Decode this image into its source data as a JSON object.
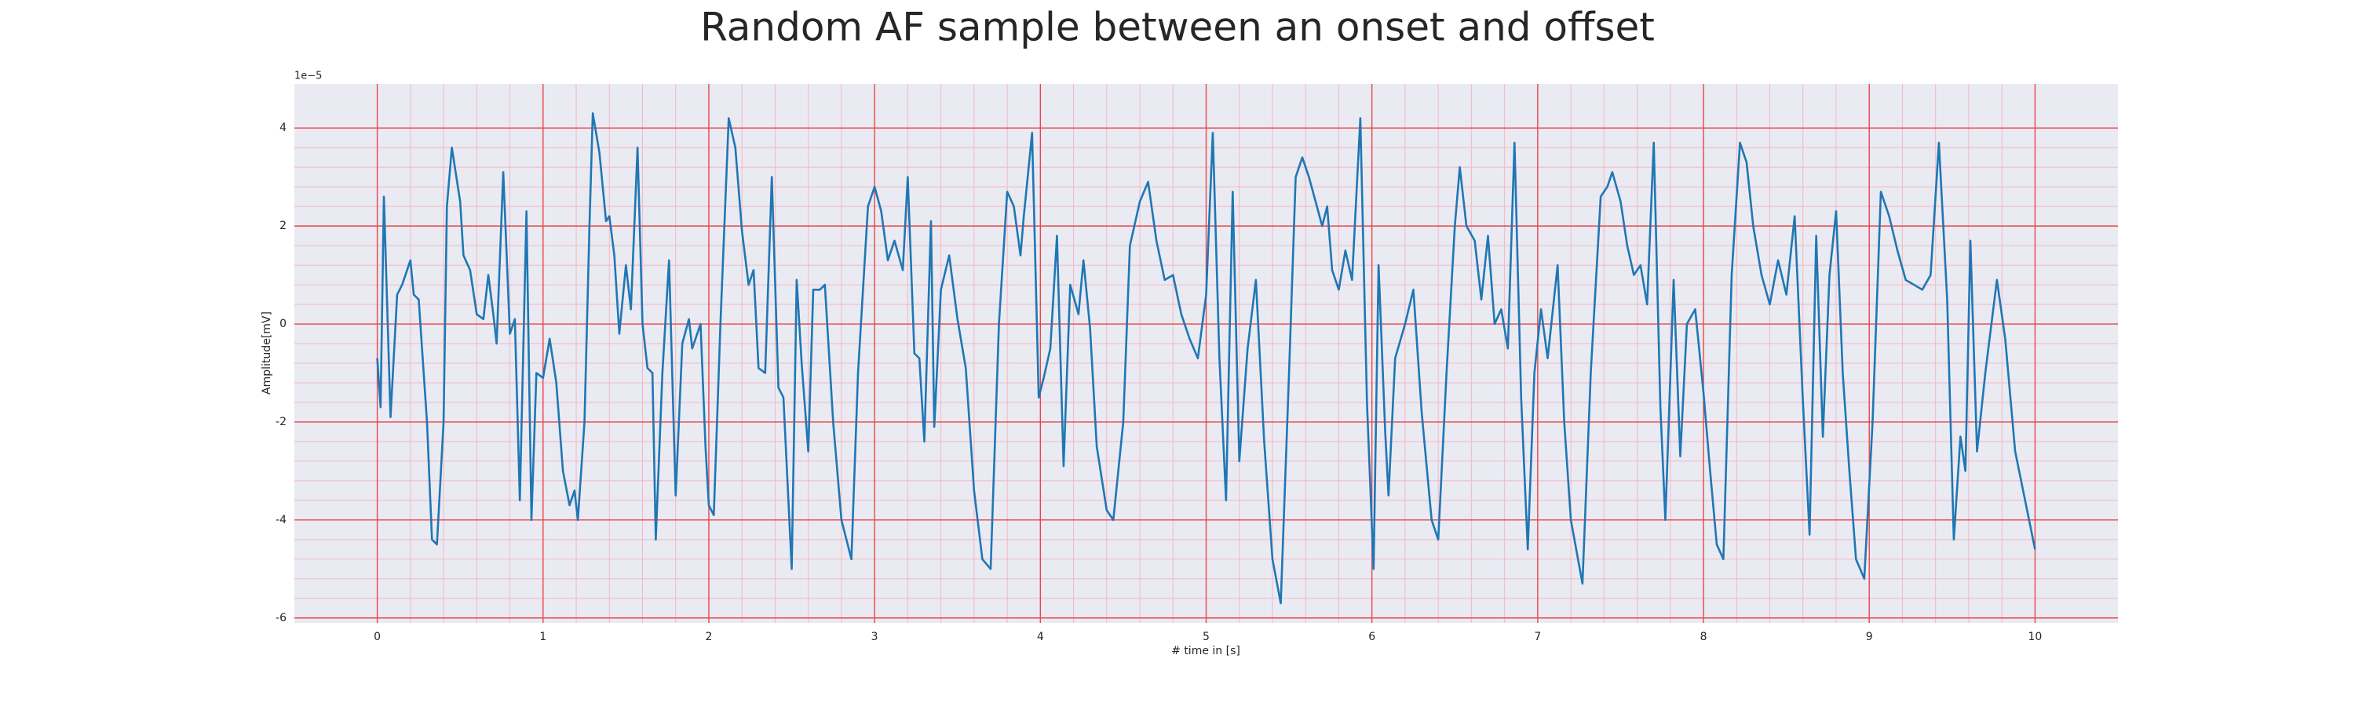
{
  "chart_data": {
    "type": "line",
    "title": "Random AF sample between an onset and offset",
    "xlabel": "# time in [s]",
    "ylabel": "Amplitude[mV]",
    "y_offset_label": "1e−5",
    "xlim": [
      -0.5,
      10.5
    ],
    "ylim": [
      -6.1,
      4.9
    ],
    "xticks": [
      0,
      1,
      2,
      3,
      4,
      5,
      6,
      7,
      8,
      9,
      10
    ],
    "yticks": [
      -6,
      -4,
      -2,
      0,
      2,
      4
    ],
    "grid": true,
    "minor_grid": true,
    "background": "#eaeaf2",
    "grid_color": "#e8464a",
    "minor_grid_color": "#f2b8c4",
    "series": [
      {
        "color": "#1f77b4",
        "x": [
          0,
          0.02,
          0.04,
          0.08,
          0.12,
          0.15,
          0.2,
          0.22,
          0.25,
          0.3,
          0.33,
          0.36,
          0.4,
          0.42,
          0.45,
          0.5,
          0.52,
          0.56,
          0.6,
          0.64,
          0.67,
          0.7,
          0.72,
          0.76,
          0.8,
          0.83,
          0.86,
          0.9,
          0.93,
          0.96,
          1.0,
          1.04,
          1.08,
          1.12,
          1.16,
          1.19,
          1.21,
          1.25,
          1.28,
          1.3,
          1.34,
          1.38,
          1.4,
          1.43,
          1.46,
          1.5,
          1.53,
          1.57,
          1.6,
          1.63,
          1.66,
          1.68,
          1.72,
          1.76,
          1.8,
          1.84,
          1.88,
          1.9,
          1.95,
          1.98,
          2.0,
          2.03,
          2.07,
          2.12,
          2.16,
          2.2,
          2.24,
          2.27,
          2.3,
          2.34,
          2.38,
          2.42,
          2.45,
          2.5,
          2.53,
          2.56,
          2.6,
          2.63,
          2.67,
          2.7,
          2.75,
          2.8,
          2.86,
          2.9,
          2.96,
          3.0,
          3.04,
          3.08,
          3.12,
          3.17,
          3.2,
          3.24,
          3.27,
          3.3,
          3.34,
          3.36,
          3.4,
          3.45,
          3.5,
          3.55,
          3.6,
          3.65,
          3.7,
          3.75,
          3.8,
          3.84,
          3.88,
          3.9,
          3.95,
          3.99,
          4.02,
          4.06,
          4.1,
          4.14,
          4.18,
          4.23,
          4.26,
          4.3,
          4.34,
          4.4,
          4.44,
          4.5,
          4.54,
          4.6,
          4.65,
          4.7,
          4.75,
          4.8,
          4.85,
          4.9,
          4.95,
          5.0,
          5.04,
          5.08,
          5.12,
          5.16,
          5.2,
          5.25,
          5.3,
          5.35,
          5.4,
          5.45,
          5.5,
          5.54,
          5.58,
          5.62,
          5.66,
          5.7,
          5.73,
          5.76,
          5.8,
          5.84,
          5.88,
          5.93,
          5.97,
          6.01,
          6.04,
          6.08,
          6.1,
          6.14,
          6.2,
          6.25,
          6.3,
          6.36,
          6.4,
          6.45,
          6.5,
          6.53,
          6.57,
          6.62,
          6.66,
          6.7,
          6.74,
          6.78,
          6.82,
          6.86,
          6.9,
          6.94,
          6.98,
          7.02,
          7.06,
          7.12,
          7.16,
          7.2,
          7.27,
          7.32,
          7.38,
          7.42,
          7.45,
          7.5,
          7.54,
          7.58,
          7.62,
          7.66,
          7.7,
          7.74,
          7.77,
          7.82,
          7.86,
          7.9,
          7.95,
          8.0,
          8.04,
          8.08,
          8.12,
          8.17,
          8.22,
          8.26,
          8.3,
          8.35,
          8.4,
          8.45,
          8.5,
          8.55,
          8.6,
          8.64,
          8.68,
          8.72,
          8.76,
          8.8,
          8.84,
          8.88,
          8.92,
          8.97,
          9.02,
          9.07,
          9.12,
          9.17,
          9.22,
          9.27,
          9.32,
          9.37,
          9.42,
          9.47,
          9.51,
          9.55,
          9.58,
          9.61,
          9.65,
          9.7,
          9.77,
          9.82,
          9.88,
          10.0
        ],
        "values": [
          -0.7,
          -1.7,
          2.6,
          -1.9,
          0.6,
          0.8,
          1.3,
          0.6,
          0.5,
          -2,
          -4.4,
          -4.5,
          -2,
          2.4,
          3.6,
          2.5,
          1.4,
          1.1,
          0.2,
          0.1,
          1.0,
          0.2,
          -0.4,
          3.1,
          -0.2,
          0.1,
          -3.6,
          2.3,
          -4,
          -1,
          -1.1,
          -0.3,
          -1.2,
          -3,
          -3.7,
          -3.4,
          -4,
          -2,
          2,
          4.3,
          3.5,
          2.1,
          2.2,
          1.4,
          -0.2,
          1.2,
          0.3,
          3.6,
          0,
          -0.9,
          -1,
          -4.4,
          -1,
          1.3,
          -3.5,
          -0.4,
          0.1,
          -0.5,
          0,
          -2.5,
          -3.7,
          -3.9,
          0,
          4.2,
          3.6,
          1.9,
          0.8,
          1.1,
          -0.9,
          -1,
          3.0,
          -1.3,
          -1.5,
          -5,
          0.9,
          -0.8,
          -2.6,
          0.7,
          0.7,
          0.8,
          -2,
          -4,
          -4.8,
          -1,
          2.4,
          2.8,
          2.3,
          1.3,
          1.7,
          1.1,
          3.0,
          -0.6,
          -0.7,
          -2.4,
          2.1,
          -2.1,
          0.7,
          1.4,
          0.1,
          -0.9,
          -3.4,
          -4.8,
          -5,
          0,
          2.7,
          2.4,
          1.4,
          2.2,
          3.9,
          -1.5,
          -1.1,
          -0.5,
          1.8,
          -2.9,
          0.8,
          0.2,
          1.3,
          -0.1,
          -2.5,
          -3.8,
          -4,
          -2,
          1.6,
          2.5,
          2.9,
          1.7,
          0.9,
          1.0,
          0.2,
          -0.3,
          -0.7,
          0.6,
          3.9,
          -0.7,
          -3.6,
          2.7,
          -2.8,
          -0.5,
          0.9,
          -2.4,
          -4.8,
          -5.7,
          -1,
          3,
          3.4,
          3,
          2.5,
          2.0,
          2.4,
          1.1,
          0.7,
          1.5,
          0.9,
          4.2,
          -1.6,
          -5,
          1.2,
          -2.2,
          -3.5,
          -0.7,
          0,
          0.7,
          -1.8,
          -4,
          -4.4,
          -1,
          2,
          3.2,
          2,
          1.7,
          0.5,
          1.8,
          0,
          0.3,
          -0.5,
          3.7,
          -1.5,
          -4.6,
          -1,
          0.3,
          -0.7,
          1.2,
          -2,
          -4,
          -5.3,
          -1,
          2.6,
          2.8,
          3.1,
          2.5,
          1.6,
          1.0,
          1.2,
          0.4,
          3.7,
          -1.7,
          -4,
          0.9,
          -2.7,
          0,
          0.3,
          -1.4,
          -3,
          -4.5,
          -4.8,
          1,
          3.7,
          3.3,
          2,
          1.0,
          0.4,
          1.3,
          0.6,
          2.2,
          -1.6,
          -4.3,
          1.8,
          -2.3,
          1,
          2.3,
          -1,
          -3,
          -4.8,
          -5.2,
          -2,
          2.7,
          2.2,
          1.5,
          0.9,
          0.8,
          0.7,
          1.0,
          3.7,
          0.5,
          -4.4,
          -2.3,
          -3,
          1.7,
          -2.6,
          -1,
          0.9,
          -0.3,
          -2.6,
          -4.6
        ]
      }
    ]
  }
}
